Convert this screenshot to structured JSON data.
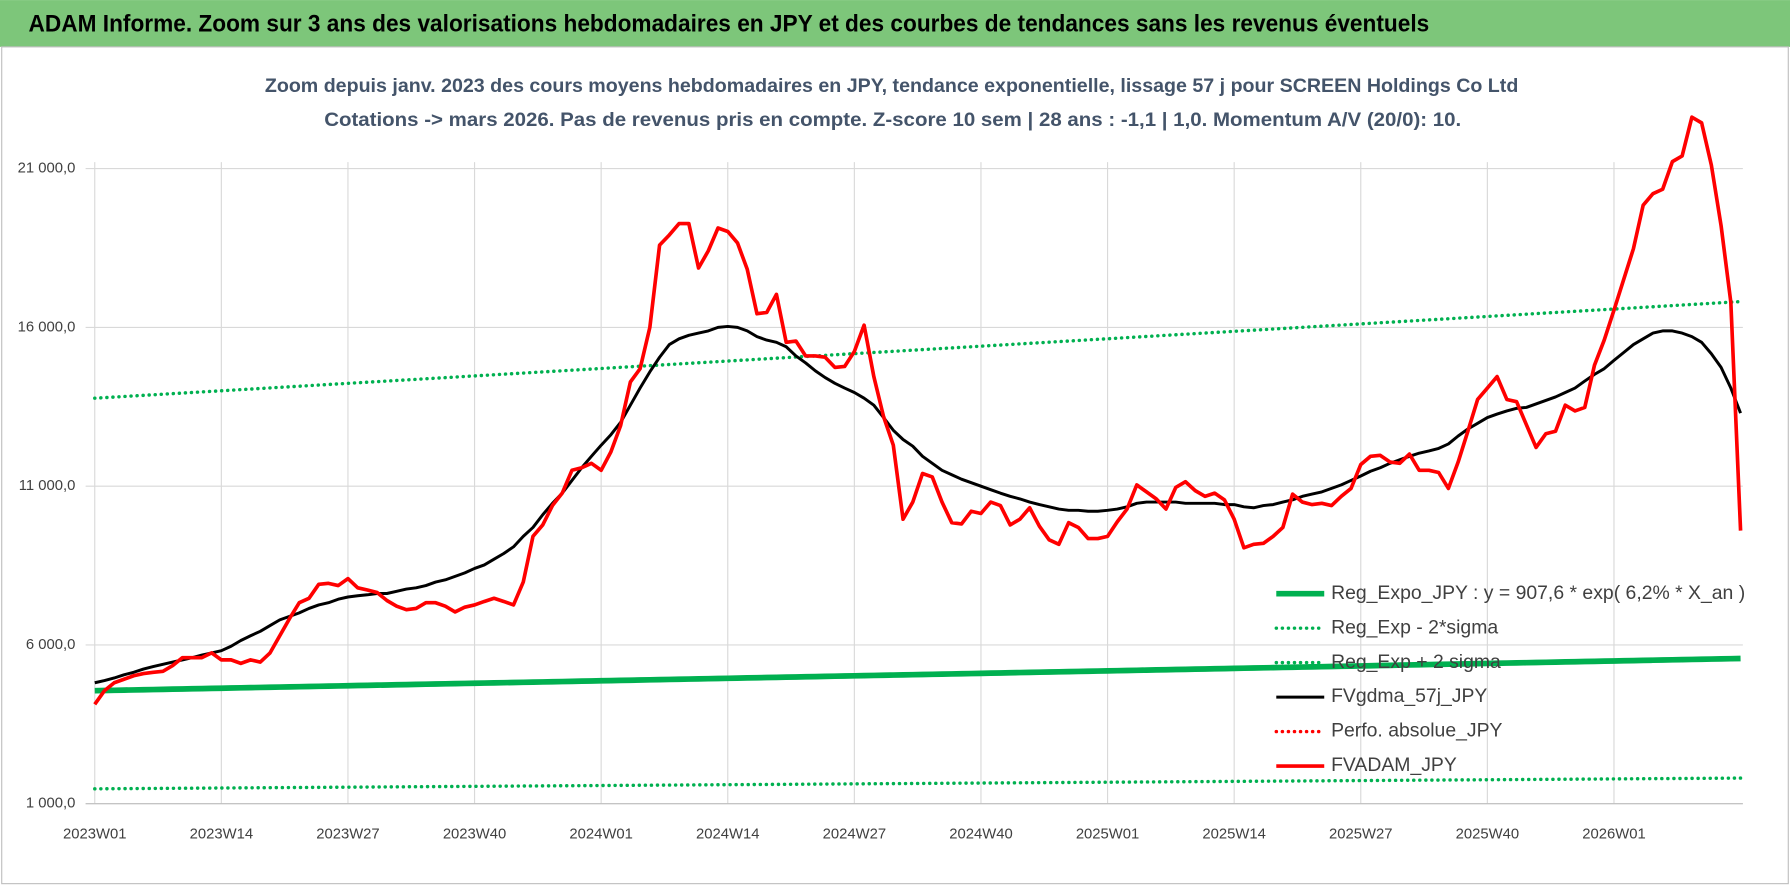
{
  "chart_data": {
    "type": "line",
    "title": "ADAM Informe. Zoom sur 3 ans des valorisations hebdomadaires en JPY et des courbes de tendances sans les revenus éventuels",
    "subtitle": [
      "Zoom depuis janv. 2023 des cours moyens hebdomadaires en JPY, tendance exponentielle, lissage 57 j pour SCREEN Holdings Co Ltd",
      "Cotations -> mars 2026. Pas de revenus pris en compte. Z-score 10 sem | 28 ans : -1,1 | 1,0. Momentum A/V (20/0): 10."
    ],
    "categories": [
      "2023W01",
      null,
      null,
      null,
      null,
      null,
      null,
      null,
      null,
      null,
      null,
      null,
      null,
      "2023W14",
      null,
      null,
      null,
      null,
      null,
      null,
      null,
      null,
      null,
      null,
      null,
      null,
      "2023W27",
      null,
      null,
      null,
      null,
      null,
      null,
      null,
      null,
      null,
      null,
      null,
      null,
      "2023W40",
      null,
      null,
      null,
      null,
      null,
      null,
      null,
      null,
      null,
      null,
      null,
      null,
      "2024W01",
      null,
      null,
      null,
      null,
      null,
      null,
      null,
      null,
      null,
      null,
      null,
      null,
      "2024W14",
      null,
      null,
      null,
      null,
      null,
      null,
      null,
      null,
      null,
      null,
      null,
      null,
      "2024W27",
      null,
      null,
      null,
      null,
      null,
      null,
      null,
      null,
      null,
      null,
      null,
      null,
      "2024W40",
      null,
      null,
      null,
      null,
      null,
      null,
      null,
      null,
      null,
      null,
      null,
      null,
      "2025W01",
      null,
      null,
      null,
      null,
      null,
      null,
      null,
      null,
      null,
      null,
      null,
      null,
      "2025W14",
      null,
      null,
      null,
      null,
      null,
      null,
      null,
      null,
      null,
      null,
      null,
      null,
      "2025W27",
      null,
      null,
      null,
      null,
      null,
      null,
      null,
      null,
      null,
      null,
      null,
      null,
      "2025W40",
      null,
      null,
      null,
      null,
      null,
      null,
      null,
      null,
      null,
      null,
      null,
      null,
      "2026W01",
      null,
      null,
      null,
      null,
      null,
      null,
      null,
      null,
      null,
      null,
      null,
      null,
      null
    ],
    "ylim": [
      1000,
      23000
    ],
    "yticks": [
      {
        "value": 1000,
        "label": "1 000,0"
      },
      {
        "value": 6000,
        "label": "6 000,0"
      },
      {
        "value": 11000,
        "label": "11 000,0"
      },
      {
        "value": 16000,
        "label": "16 000,0"
      },
      {
        "value": 21000,
        "label": "21 000,0"
      }
    ],
    "grid": true,
    "legend": "right",
    "series": [
      {
        "name": "Reg_Expo_JPY : y = 907,6 * exp( 6,2% *  X_an )",
        "color": "#00b050",
        "style": "thick",
        "values": [
          4560,
          4566,
          4572,
          4578,
          4584,
          4590,
          4596,
          4602,
          4608,
          4614,
          4620,
          4626,
          4632,
          4638,
          4644,
          4650,
          4656,
          4662,
          4668,
          4674,
          4680,
          4686,
          4692,
          4698,
          4704,
          4710,
          4716,
          4722,
          4728,
          4734,
          4740,
          4746,
          4752,
          4758,
          4764,
          4770,
          4776,
          4782,
          4788,
          4794,
          4800,
          4806,
          4812,
          4818,
          4824,
          4830,
          4836,
          4842,
          4848,
          4854,
          4860,
          4866,
          4872,
          4878,
          4884,
          4890,
          4896,
          4902,
          4908,
          4914,
          4920,
          4926,
          4932,
          4938,
          4944,
          4950,
          4956,
          4962,
          4968,
          4974,
          4980,
          4986,
          4992,
          4998,
          5004,
          5010,
          5016,
          5022,
          5028,
          5034,
          5040,
          5046,
          5052,
          5058,
          5064,
          5070,
          5076,
          5082,
          5088,
          5094,
          5100,
          5106,
          5112,
          5118,
          5124,
          5130,
          5136,
          5142,
          5148,
          5154,
          5160,
          5166,
          5172,
          5178,
          5184,
          5190,
          5196,
          5202,
          5208,
          5214,
          5220,
          5226,
          5232,
          5238,
          5244,
          5250,
          5256,
          5262,
          5268,
          5274,
          5280,
          5286,
          5292,
          5298,
          5304,
          5310,
          5316,
          5322,
          5328,
          5334,
          5340,
          5346,
          5352,
          5358,
          5364,
          5370,
          5376,
          5382,
          5388,
          5394,
          5400,
          5406,
          5412,
          5418,
          5424,
          5430,
          5436,
          5442,
          5448,
          5454,
          5460,
          5466,
          5472,
          5478,
          5484,
          5490,
          5496,
          5502,
          5508,
          5514,
          5520,
          5526,
          5532,
          5538,
          5544,
          5550,
          5556,
          5562,
          5568,
          5574
        ]
      },
      {
        "name": "Reg_Exp - 2*sigma",
        "color": "#00b050",
        "style": "dotted",
        "values": [
          1470,
          1472,
          1474,
          1476,
          1478,
          1480,
          1482,
          1484,
          1486,
          1488,
          1490,
          1492,
          1494,
          1496,
          1498,
          1500,
          1502,
          1504,
          1506,
          1508,
          1510,
          1512,
          1514,
          1516,
          1518,
          1520,
          1522,
          1524,
          1526,
          1528,
          1530,
          1532,
          1534,
          1536,
          1538,
          1540,
          1542,
          1544,
          1546,
          1548,
          1550,
          1552,
          1554,
          1556,
          1558,
          1560,
          1562,
          1564,
          1566,
          1568,
          1570,
          1572,
          1574,
          1576,
          1578,
          1580,
          1582,
          1584,
          1586,
          1588,
          1590,
          1592,
          1594,
          1596,
          1598,
          1600,
          1602,
          1604,
          1606,
          1608,
          1610,
          1612,
          1614,
          1616,
          1618,
          1620,
          1622,
          1624,
          1626,
          1628,
          1630,
          1632,
          1634,
          1636,
          1638,
          1640,
          1642,
          1644,
          1646,
          1648,
          1650,
          1652,
          1654,
          1656,
          1658,
          1660,
          1662,
          1664,
          1666,
          1668,
          1670,
          1672,
          1674,
          1676,
          1678,
          1680,
          1682,
          1684,
          1686,
          1688,
          1690,
          1692,
          1694,
          1696,
          1698,
          1700,
          1702,
          1704,
          1706,
          1708,
          1710,
          1712,
          1714,
          1716,
          1718,
          1720,
          1722,
          1724,
          1726,
          1728,
          1730,
          1732,
          1734,
          1736,
          1738,
          1740,
          1742,
          1744,
          1746,
          1748,
          1750,
          1752,
          1754,
          1756,
          1758,
          1760,
          1762,
          1764,
          1766,
          1768,
          1770,
          1772,
          1774,
          1776,
          1778,
          1780,
          1782,
          1784,
          1786,
          1788,
          1790,
          1792,
          1794,
          1796,
          1798,
          1800,
          1802,
          1804,
          1806,
          1808
        ]
      },
      {
        "name": "Reg_Exp + 2 sigma",
        "color": "#00b050",
        "style": "dotted",
        "values": [
          13770,
          13788,
          13806,
          13824,
          13842,
          13860,
          13878,
          13896,
          13914,
          13932,
          13950,
          13968,
          13986,
          14004,
          14022,
          14040,
          14058,
          14076,
          14094,
          14112,
          14130,
          14148,
          14166,
          14184,
          14202,
          14220,
          14238,
          14256,
          14274,
          14292,
          14310,
          14328,
          14346,
          14364,
          14382,
          14400,
          14418,
          14436,
          14454,
          14472,
          14490,
          14508,
          14526,
          14544,
          14562,
          14580,
          14598,
          14616,
          14634,
          14652,
          14670,
          14688,
          14706,
          14724,
          14742,
          14760,
          14778,
          14796,
          14814,
          14832,
          14850,
          14868,
          14886,
          14904,
          14922,
          14940,
          14958,
          14976,
          14994,
          15012,
          15030,
          15048,
          15066,
          15084,
          15102,
          15120,
          15138,
          15156,
          15174,
          15192,
          15210,
          15228,
          15246,
          15264,
          15282,
          15300,
          15318,
          15336,
          15354,
          15372,
          15390,
          15408,
          15426,
          15444,
          15462,
          15480,
          15498,
          15516,
          15534,
          15552,
          15570,
          15588,
          15606,
          15624,
          15642,
          15660,
          15678,
          15696,
          15714,
          15732,
          15750,
          15768,
          15786,
          15804,
          15822,
          15840,
          15858,
          15876,
          15894,
          15912,
          15930,
          15948,
          15966,
          15984,
          16002,
          16020,
          16038,
          16056,
          16074,
          16092,
          16110,
          16128,
          16146,
          16164,
          16182,
          16200,
          16218,
          16236,
          16254,
          16272,
          16290,
          16308,
          16326,
          16344,
          16362,
          16380,
          16398,
          16416,
          16434,
          16452,
          16470,
          16488,
          16506,
          16524,
          16542,
          16560,
          16578,
          16596,
          16614,
          16632,
          16650,
          16668,
          16686,
          16704,
          16722,
          16740,
          16758,
          16776,
          16794,
          16812
        ]
      },
      {
        "name": "FVgdma_57j_JPY",
        "color": "#000000",
        "style": "solid",
        "values": [
          4810,
          4880,
          4960,
          5060,
          5140,
          5240,
          5320,
          5390,
          5460,
          5530,
          5600,
          5680,
          5750,
          5820,
          5960,
          6140,
          6290,
          6430,
          6610,
          6790,
          6900,
          7010,
          7150,
          7260,
          7330,
          7440,
          7510,
          7550,
          7580,
          7620,
          7620,
          7690,
          7760,
          7800,
          7870,
          7980,
          8050,
          8160,
          8270,
          8410,
          8520,
          8700,
          8880,
          9090,
          9420,
          9700,
          10100,
          10460,
          10780,
          11180,
          11580,
          11940,
          12290,
          12620,
          13010,
          13550,
          14090,
          14600,
          15060,
          15460,
          15640,
          15750,
          15820,
          15890,
          16000,
          16030,
          16000,
          15890,
          15710,
          15600,
          15530,
          15390,
          15100,
          14880,
          14630,
          14420,
          14240,
          14090,
          13950,
          13770,
          13550,
          13160,
          12760,
          12470,
          12260,
          11940,
          11720,
          11500,
          11360,
          11220,
          11110,
          11000,
          10890,
          10780,
          10680,
          10600,
          10500,
          10420,
          10350,
          10280,
          10240,
          10240,
          10210,
          10210,
          10240,
          10280,
          10350,
          10460,
          10500,
          10500,
          10500,
          10500,
          10460,
          10460,
          10460,
          10460,
          10420,
          10420,
          10350,
          10320,
          10390,
          10420,
          10500,
          10570,
          10680,
          10750,
          10820,
          10930,
          11040,
          11180,
          11320,
          11470,
          11580,
          11720,
          11830,
          11940,
          12040,
          12110,
          12190,
          12330,
          12580,
          12800,
          12980,
          13160,
          13270,
          13370,
          13450,
          13480,
          13590,
          13700,
          13810,
          13950,
          14090,
          14310,
          14520,
          14700,
          14960,
          15210,
          15460,
          15640,
          15820,
          15890,
          15890,
          15820,
          15710,
          15530,
          15170,
          14740,
          14090,
          13300
        ]
      },
      {
        "name": "Perfo. absolue_JPY",
        "color": "#ff0000",
        "style": "dotted"
      },
      {
        "name": "FVADAM_JPY",
        "color": "#ff0000",
        "style": "red",
        "values": [
          4130,
          4560,
          4810,
          4920,
          5030,
          5100,
          5140,
          5170,
          5350,
          5600,
          5600,
          5600,
          5750,
          5530,
          5530,
          5420,
          5530,
          5460,
          5750,
          6290,
          6830,
          7330,
          7470,
          7910,
          7940,
          7870,
          8090,
          7800,
          7730,
          7650,
          7400,
          7220,
          7110,
          7150,
          7330,
          7330,
          7220,
          7040,
          7190,
          7260,
          7370,
          7470,
          7370,
          7260,
          7980,
          9420,
          9780,
          10390,
          10780,
          11500,
          11580,
          11720,
          11500,
          12080,
          12910,
          14280,
          14700,
          16000,
          18590,
          18910,
          19270,
          19270,
          17870,
          18410,
          19130,
          19020,
          18660,
          17830,
          16430,
          16470,
          17040,
          15530,
          15570,
          15100,
          15100,
          15060,
          14740,
          14770,
          15240,
          16070,
          14450,
          13190,
          12290,
          9960,
          10500,
          11400,
          11290,
          10500,
          9850,
          9810,
          10210,
          10140,
          10500,
          10390,
          9780,
          9960,
          10320,
          9740,
          9310,
          9170,
          9850,
          9700,
          9350,
          9350,
          9420,
          9880,
          10280,
          11040,
          10820,
          10600,
          10280,
          10960,
          11140,
          10860,
          10680,
          10780,
          10570,
          9960,
          9060,
          9170,
          9200,
          9420,
          9700,
          10750,
          10500,
          10420,
          10460,
          10390,
          10680,
          10930,
          11680,
          11940,
          11970,
          11760,
          11720,
          12010,
          11500,
          11500,
          11430,
          10930,
          11760,
          12730,
          13730,
          14090,
          14450,
          13730,
          13660,
          12940,
          12220,
          12650,
          12730,
          13550,
          13370,
          13480,
          14810,
          15600,
          16540,
          17510,
          18480,
          19850,
          20210,
          20350,
          21220,
          21400,
          22620,
          22440,
          21110,
          19200,
          16790,
          9600
        ]
      }
    ]
  }
}
